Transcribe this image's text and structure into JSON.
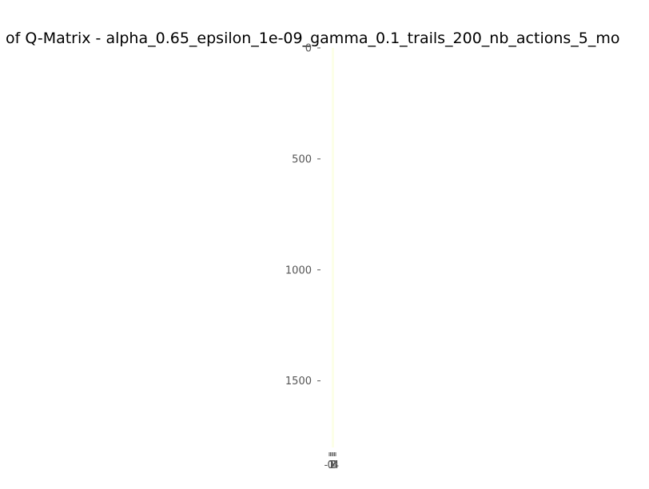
{
  "chart_data": {
    "type": "heatmap",
    "title": "of Q-Matrix - alpha_0.65_epsilon_1e-09_gamma_0.1_trails_200_nb_actions_5_mo",
    "xlabel": "",
    "ylabel": "",
    "x_tick_labels": [
      "-1",
      "0",
      "1",
      "2",
      "3",
      "4"
    ],
    "y_ticks": [
      0,
      500,
      1000,
      1500
    ],
    "y_tick_labels": [
      "0",
      "500",
      "1000",
      "1500"
    ],
    "ylim": [
      0,
      1800
    ],
    "n_columns": 5,
    "y_axis_inverted": true,
    "grid": false,
    "colormap": "viridis",
    "values_note": "",
    "cell_color": "#fcffe8"
  }
}
